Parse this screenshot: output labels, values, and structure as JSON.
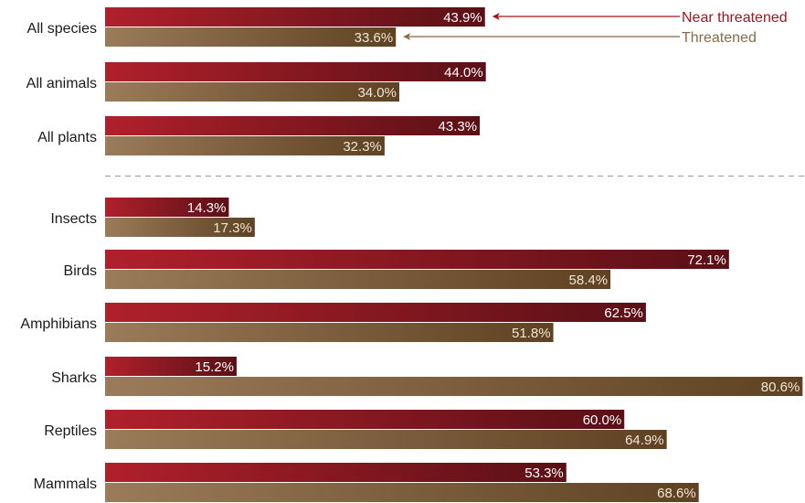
{
  "chart_data": {
    "type": "bar",
    "orientation": "horizontal",
    "categories": [
      "All species",
      "All animals",
      "All plants",
      "Insects",
      "Birds",
      "Amphibians",
      "Sharks",
      "Reptiles",
      "Mammals"
    ],
    "series": [
      {
        "name": "Near threatened",
        "values": [
          43.9,
          44.0,
          43.3,
          14.3,
          72.1,
          62.5,
          15.2,
          60.0,
          53.3
        ],
        "labels": [
          "43.9%",
          "44.0%",
          "43.3%",
          "14.3%",
          "72.1%",
          "62.5%",
          "15.2%",
          "60.0%",
          "53.3%"
        ],
        "color": "#8b1a22",
        "gradient": [
          "#b0202b",
          "#5a1016"
        ],
        "label_color": "#ffffff"
      },
      {
        "name": "Threatened",
        "values": [
          33.6,
          34.0,
          32.3,
          17.3,
          58.4,
          51.8,
          80.6,
          64.9,
          68.6
        ],
        "labels": [
          "33.6%",
          "34.0%",
          "32.3%",
          "17.3%",
          "58.4%",
          "51.8%",
          "80.6%",
          "64.9%",
          "68.6%"
        ],
        "color": "#8a6a48",
        "gradient": [
          "#9a7b5a",
          "#5e4222"
        ],
        "label_color": "#f1e6d4"
      }
    ],
    "xlim": [
      0,
      80.6
    ],
    "grid": false,
    "separator_after_index": 2,
    "legend": {
      "placement": "top-right",
      "items": [
        {
          "label": "Near threatened",
          "color": "#a5141c"
        },
        {
          "label": "Threatened",
          "color": "#8a6a48"
        }
      ]
    },
    "title": "",
    "xlabel": "",
    "ylabel": ""
  }
}
